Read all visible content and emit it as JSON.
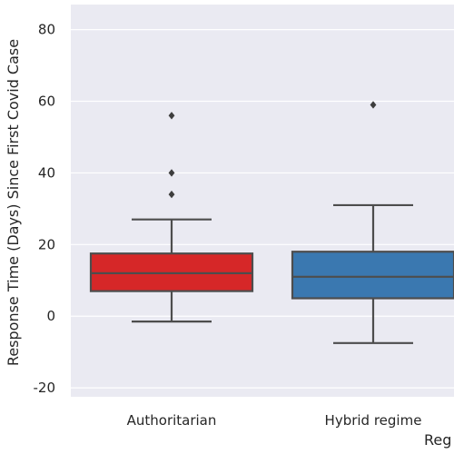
{
  "chart_data": {
    "type": "box",
    "title": "",
    "xlabel": "Reg",
    "ylabel": "Response Time (Days) Since First Covid Case",
    "ylim": [
      -22.5,
      87
    ],
    "yticks": [
      -20,
      0,
      20,
      40,
      60,
      80
    ],
    "grid": true,
    "colors": {
      "plot_background": "#eaeaf2",
      "grid": "#ffffff",
      "line": "#4d4d4d"
    },
    "categories": [
      "Authoritarian",
      "Hybrid regime"
    ],
    "boxes": [
      {
        "name": "Authoritarian",
        "color": "#d62728",
        "whisker_low": -1.5,
        "q1": 7,
        "median": 12,
        "q3": 17.5,
        "whisker_high": 27,
        "outliers": [
          56,
          40,
          34
        ]
      },
      {
        "name": "Hybrid regime",
        "color": "#3a78b0",
        "whisker_low": -7.5,
        "q1": 5,
        "median": 11,
        "q3": 18,
        "whisker_high": 31,
        "outliers": [
          59
        ]
      }
    ]
  }
}
